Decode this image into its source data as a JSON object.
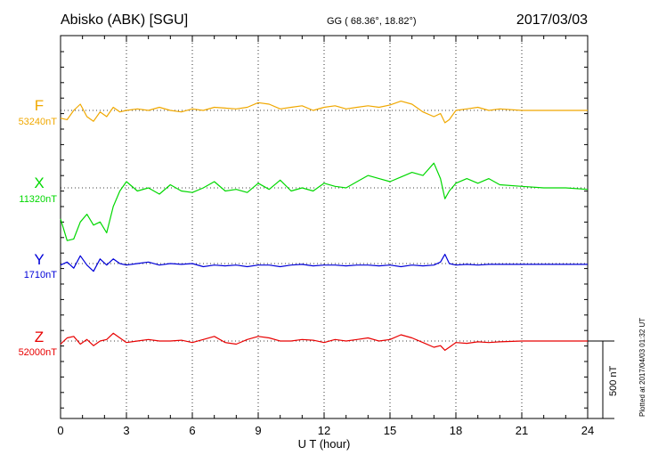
{
  "header": {
    "station": "Abisko (ABK)  [SGU]",
    "coords": "GG ( 68.36°,  18.82°)",
    "date": "2017/03/03"
  },
  "footer": {
    "plotted": "Plotted at 2017/04/03 01:32 UT"
  },
  "scale_bar": {
    "label": "500 nT",
    "nt": 500
  },
  "chart_data": {
    "type": "line",
    "xlabel": "U T (hour)",
    "xlim": [
      0,
      24
    ],
    "x_ticks": [
      "0",
      "3",
      "6",
      "9",
      "12",
      "15",
      "18",
      "21",
      "24"
    ],
    "grid": "dotted vertical at 3-hour intervals, dotted horizontal at each component baseline",
    "series": [
      {
        "name": "F",
        "baseline_label": "53240nT",
        "baseline_nt": 53240,
        "color": "#f0a800",
        "x": [
          0,
          0.3,
          0.6,
          0.9,
          1.2,
          1.5,
          1.8,
          2.1,
          2.4,
          2.7,
          3,
          3.5,
          4,
          4.5,
          5,
          5.5,
          6,
          6.5,
          7,
          7.5,
          8,
          8.5,
          9,
          9.5,
          10,
          10.5,
          11,
          11.5,
          12,
          12.5,
          13,
          13.5,
          14,
          14.5,
          15,
          15.5,
          16,
          16.5,
          17,
          17.3,
          17.5,
          17.7,
          18,
          18.5,
          19,
          19.5,
          20,
          21,
          22,
          23,
          24
        ],
        "values": [
          53190,
          53180,
          53240,
          53280,
          53200,
          53170,
          53230,
          53200,
          53260,
          53230,
          53240,
          53250,
          53240,
          53260,
          53240,
          53230,
          53250,
          53240,
          53260,
          53255,
          53250,
          53260,
          53290,
          53280,
          53250,
          53260,
          53270,
          53240,
          53260,
          53270,
          53250,
          53260,
          53270,
          53260,
          53275,
          53300,
          53280,
          53230,
          53200,
          53220,
          53160,
          53180,
          53240,
          53250,
          53260,
          53240,
          53250,
          53240,
          53240,
          53240,
          53240
        ]
      },
      {
        "name": "X",
        "baseline_label": "11320nT",
        "baseline_nt": 11320,
        "color": "#00d800",
        "x": [
          0,
          0.3,
          0.6,
          0.9,
          1.2,
          1.5,
          1.8,
          2.1,
          2.4,
          2.7,
          3,
          3.5,
          4,
          4.5,
          5,
          5.5,
          6,
          6.5,
          7,
          7.5,
          8,
          8.5,
          9,
          9.5,
          10,
          10.5,
          11,
          11.5,
          12,
          12.5,
          13,
          13.5,
          14,
          14.5,
          15,
          15.5,
          16,
          16.5,
          17,
          17.3,
          17.5,
          17.7,
          18,
          18.5,
          19,
          19.5,
          20,
          21,
          22,
          23,
          24
        ],
        "values": [
          11120,
          10980,
          10990,
          11100,
          11150,
          11080,
          11100,
          11030,
          11200,
          11300,
          11360,
          11300,
          11320,
          11280,
          11340,
          11300,
          11290,
          11320,
          11360,
          11300,
          11310,
          11290,
          11350,
          11310,
          11370,
          11300,
          11320,
          11300,
          11350,
          11330,
          11320,
          11360,
          11400,
          11380,
          11360,
          11390,
          11420,
          11400,
          11480,
          11380,
          11250,
          11300,
          11350,
          11380,
          11350,
          11380,
          11340,
          11330,
          11320,
          11320,
          11310
        ]
      },
      {
        "name": "Y",
        "baseline_label": "1710nT",
        "baseline_nt": 1710,
        "color": "#0000d8",
        "x": [
          0,
          0.3,
          0.6,
          0.9,
          1.2,
          1.5,
          1.8,
          2.1,
          2.4,
          2.7,
          3,
          3.5,
          4,
          4.5,
          5,
          5.5,
          6,
          6.5,
          7,
          7.5,
          8,
          8.5,
          9,
          9.5,
          10,
          10.5,
          11,
          11.5,
          12,
          12.5,
          13,
          13.5,
          14,
          14.5,
          15,
          15.5,
          16,
          16.5,
          17,
          17.3,
          17.5,
          17.7,
          18,
          18.5,
          19,
          19.5,
          20,
          21,
          22,
          23,
          24
        ],
        "values": [
          1700,
          1720,
          1680,
          1760,
          1700,
          1660,
          1740,
          1700,
          1740,
          1710,
          1700,
          1710,
          1720,
          1700,
          1710,
          1705,
          1710,
          1690,
          1700,
          1695,
          1700,
          1690,
          1700,
          1700,
          1690,
          1700,
          1705,
          1695,
          1700,
          1700,
          1695,
          1700,
          1700,
          1695,
          1700,
          1690,
          1700,
          1695,
          1700,
          1720,
          1770,
          1710,
          1700,
          1705,
          1700,
          1705,
          1705,
          1705,
          1705,
          1705,
          1705
        ]
      },
      {
        "name": "Z",
        "baseline_label": "52000nT",
        "baseline_nt": 52000,
        "color": "#e80000",
        "x": [
          0,
          0.3,
          0.6,
          0.9,
          1.2,
          1.5,
          1.8,
          2.1,
          2.4,
          2.7,
          3,
          3.5,
          4,
          4.5,
          5,
          5.5,
          6,
          6.5,
          7,
          7.5,
          8,
          8.5,
          9,
          9.5,
          10,
          10.5,
          11,
          11.5,
          12,
          12.5,
          13,
          13.5,
          14,
          14.5,
          15,
          15.5,
          16,
          16.5,
          17,
          17.3,
          17.5,
          17.7,
          18,
          18.5,
          19,
          19.5,
          20,
          21,
          22,
          23,
          24
        ],
        "values": [
          51980,
          52020,
          52030,
          51980,
          52010,
          51970,
          52000,
          52010,
          52050,
          52020,
          51990,
          52000,
          52010,
          52000,
          52000,
          52005,
          51990,
          52010,
          52030,
          51990,
          51980,
          52010,
          52030,
          52020,
          52000,
          52000,
          52010,
          52005,
          51990,
          52010,
          52000,
          52010,
          52020,
          52000,
          52010,
          52040,
          52020,
          51990,
          51960,
          51970,
          51940,
          51960,
          51990,
          51985,
          51995,
          51990,
          51995,
          52000,
          52000,
          52000,
          52000
        ]
      }
    ]
  }
}
